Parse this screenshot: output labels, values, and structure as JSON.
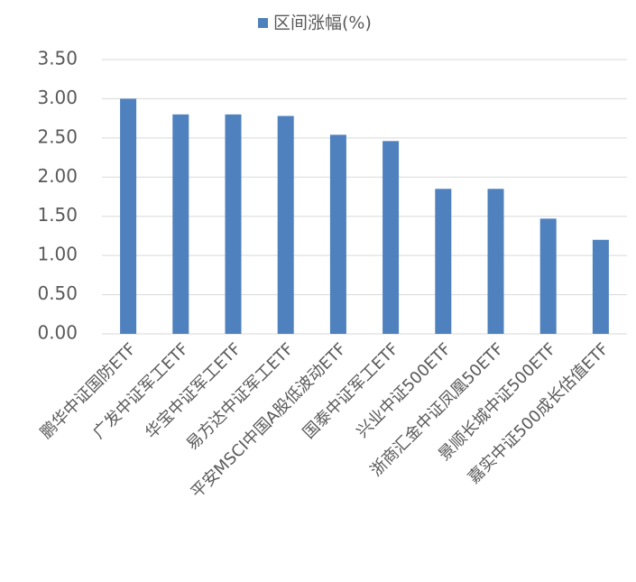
{
  "chart_data": {
    "type": "bar",
    "series": [
      {
        "name": "区间涨幅(%)",
        "color": "#4e81bd",
        "values": [
          3.0,
          2.8,
          2.8,
          2.78,
          2.54,
          2.46,
          1.85,
          1.85,
          1.47,
          1.2
        ]
      }
    ],
    "categories": [
      "鹏华中证国防ETF",
      "广发中证军工ETF",
      "华宝中证军工ETF",
      "易方达中证军工ETF",
      "平安MSCI中国A股低波动ETF",
      "国泰中证军工ETF",
      "兴业中证500ETF",
      "浙商汇金中证凤凰50ETF",
      "景顺长城中证500ETF",
      "嘉实中证500成长估值ETF"
    ],
    "ylim": [
      0,
      3.5
    ],
    "yticks": [
      {
        "value": 0,
        "label": "0.00"
      },
      {
        "value": 0.5,
        "label": "0.50"
      },
      {
        "value": 1,
        "label": "1.00"
      },
      {
        "value": 1.5,
        "label": "1.50"
      },
      {
        "value": 2,
        "label": "2.00"
      },
      {
        "value": 2.5,
        "label": "2.50"
      },
      {
        "value": 3,
        "label": "3.00"
      },
      {
        "value": 3.5,
        "label": "3.50"
      }
    ],
    "grid": true,
    "legend": "top"
  }
}
